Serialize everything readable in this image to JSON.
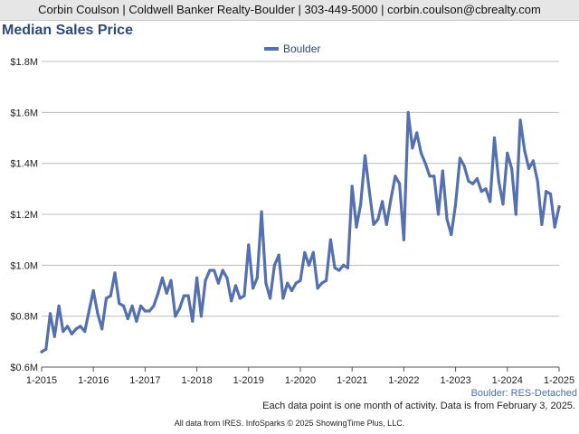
{
  "header": {
    "contact_line": "Corbin Coulson | Coldwell Banker Realty-Boulder | 303-449-5000 | corbin.coulson@cbrealty.com"
  },
  "series_caption": "Boulder: RES-Detached",
  "footer": {
    "note": "Each data point is one month of activity. Data is from February 3, 2025.",
    "source": "All data from IRES. InfoSparks © 2025 ShowingTime Plus, LLC."
  },
  "colors": {
    "series_line": "#5470b0",
    "gridline": "#bdbdbd",
    "title": "#2e4a7a"
  },
  "chart_data": {
    "type": "line",
    "title": "Median Sales Price",
    "xlabel": "",
    "ylabel": "",
    "x_start": "2015-01",
    "x_step": "1 month",
    "x_ticks": [
      "1-2015",
      "1-2016",
      "1-2017",
      "1-2018",
      "1-2019",
      "1-2020",
      "1-2021",
      "1-2022",
      "1-2023",
      "1-2024",
      "1-2025"
    ],
    "y_ticks": [
      "$0.6M",
      "$0.8M",
      "$1.0M",
      "$1.2M",
      "$1.4M",
      "$1.6M",
      "$1.8M"
    ],
    "ylim": [
      0.6,
      1.8
    ],
    "grid": true,
    "legend_position": "top",
    "series": [
      {
        "name": "Boulder",
        "values": [
          0.66,
          0.67,
          0.81,
          0.72,
          0.84,
          0.74,
          0.76,
          0.73,
          0.75,
          0.76,
          0.74,
          0.82,
          0.9,
          0.81,
          0.75,
          0.87,
          0.88,
          0.97,
          0.85,
          0.84,
          0.79,
          0.84,
          0.78,
          0.84,
          0.82,
          0.82,
          0.84,
          0.89,
          0.95,
          0.89,
          0.94,
          0.8,
          0.83,
          0.88,
          0.88,
          0.78,
          0.95,
          0.8,
          0.94,
          0.98,
          0.98,
          0.93,
          0.98,
          0.95,
          0.86,
          0.92,
          0.87,
          0.88,
          1.08,
          0.91,
          0.95,
          1.21,
          0.93,
          0.87,
          1.0,
          1.04,
          0.87,
          0.93,
          0.9,
          0.93,
          0.94,
          1.05,
          1.0,
          1.05,
          0.91,
          0.93,
          0.94,
          1.1,
          0.99,
          0.98,
          1.0,
          0.99,
          1.31,
          1.15,
          1.24,
          1.43,
          1.29,
          1.16,
          1.18,
          1.25,
          1.16,
          1.26,
          1.35,
          1.32,
          1.1,
          1.6,
          1.46,
          1.52,
          1.44,
          1.4,
          1.35,
          1.35,
          1.2,
          1.37,
          1.18,
          1.12,
          1.24,
          1.42,
          1.39,
          1.33,
          1.32,
          1.34,
          1.29,
          1.3,
          1.25,
          1.5,
          1.33,
          1.24,
          1.44,
          1.38,
          1.2,
          1.57,
          1.45,
          1.38,
          1.41,
          1.33,
          1.16,
          1.29,
          1.28,
          1.15,
          1.23
        ]
      }
    ]
  }
}
